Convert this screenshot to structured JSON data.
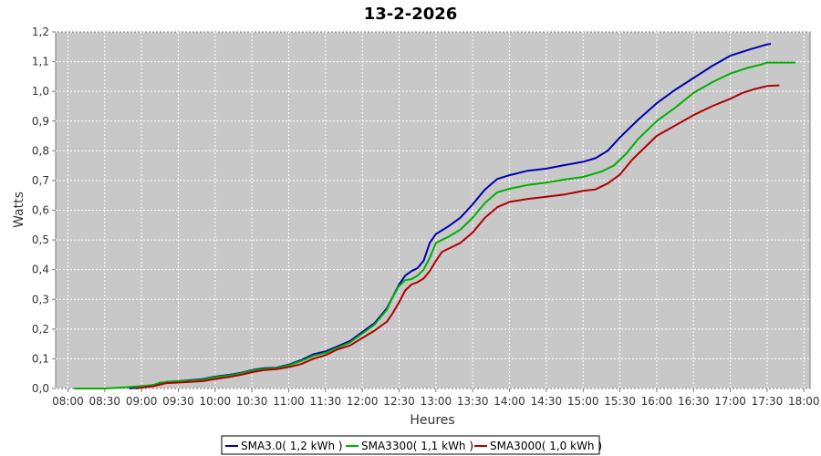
{
  "chart_data": {
    "type": "line",
    "title": "13-2-2026",
    "xlabel": "Heures",
    "ylabel": "Watts",
    "xlim": [
      "07:50",
      "18:05"
    ],
    "ylim": [
      0,
      1.2
    ],
    "x_ticks": [
      "08:00",
      "08:30",
      "09:00",
      "09:30",
      "10:00",
      "10:30",
      "11:00",
      "11:30",
      "12:00",
      "12:30",
      "13:00",
      "13:30",
      "14:00",
      "14:30",
      "15:00",
      "15:30",
      "16:00",
      "16:30",
      "17:00",
      "17:30",
      "18:00"
    ],
    "y_ticks": [
      "0,0",
      "0,1",
      "0,2",
      "0,3",
      "0,4",
      "0,5",
      "0,6",
      "0,7",
      "0,8",
      "0,9",
      "1,0",
      "1,1",
      "1,2"
    ],
    "grid": true,
    "legend_position": "bottom",
    "background": "#c8c8c8",
    "series": [
      {
        "name": "SMA3.0( 1,2 kWh )",
        "color": "#0000b0",
        "points": [
          [
            "08:50",
            0.0
          ],
          [
            "09:00",
            0.005
          ],
          [
            "09:10",
            0.012
          ],
          [
            "09:20",
            0.022
          ],
          [
            "09:30",
            0.025
          ],
          [
            "09:40",
            0.028
          ],
          [
            "09:50",
            0.032
          ],
          [
            "10:00",
            0.04
          ],
          [
            "10:10",
            0.045
          ],
          [
            "10:20",
            0.052
          ],
          [
            "10:30",
            0.062
          ],
          [
            "10:40",
            0.068
          ],
          [
            "10:50",
            0.07
          ],
          [
            "11:00",
            0.08
          ],
          [
            "11:10",
            0.095
          ],
          [
            "11:20",
            0.115
          ],
          [
            "11:30",
            0.125
          ],
          [
            "11:40",
            0.142
          ],
          [
            "11:50",
            0.16
          ],
          [
            "12:00",
            0.19
          ],
          [
            "12:10",
            0.22
          ],
          [
            "12:15",
            0.245
          ],
          [
            "12:20",
            0.27
          ],
          [
            "12:25",
            0.31
          ],
          [
            "12:30",
            0.35
          ],
          [
            "12:35",
            0.38
          ],
          [
            "12:40",
            0.395
          ],
          [
            "12:45",
            0.405
          ],
          [
            "12:50",
            0.43
          ],
          [
            "12:55",
            0.49
          ],
          [
            "13:00",
            0.52
          ],
          [
            "13:10",
            0.545
          ],
          [
            "13:20",
            0.575
          ],
          [
            "13:30",
            0.62
          ],
          [
            "13:40",
            0.67
          ],
          [
            "13:50",
            0.705
          ],
          [
            "14:00",
            0.718
          ],
          [
            "14:15",
            0.733
          ],
          [
            "14:30",
            0.74
          ],
          [
            "14:45",
            0.752
          ],
          [
            "15:00",
            0.763
          ],
          [
            "15:10",
            0.775
          ],
          [
            "15:20",
            0.8
          ],
          [
            "15:30",
            0.845
          ],
          [
            "15:45",
            0.905
          ],
          [
            "16:00",
            0.96
          ],
          [
            "16:15",
            1.005
          ],
          [
            "16:30",
            1.045
          ],
          [
            "16:45",
            1.085
          ],
          [
            "17:00",
            1.12
          ],
          [
            "17:15",
            1.14
          ],
          [
            "17:30",
            1.158
          ],
          [
            "17:33",
            1.16
          ]
        ]
      },
      {
        "name": "SMA3300( 1,1 kWh )",
        "color": "#00b000",
        "points": [
          [
            "08:05",
            0.0
          ],
          [
            "08:30",
            0.0
          ],
          [
            "08:50",
            0.005
          ],
          [
            "09:00",
            0.008
          ],
          [
            "09:10",
            0.012
          ],
          [
            "09:15",
            0.02
          ],
          [
            "09:30",
            0.025
          ],
          [
            "09:40",
            0.026
          ],
          [
            "09:50",
            0.03
          ],
          [
            "10:00",
            0.038
          ],
          [
            "10:10",
            0.043
          ],
          [
            "10:20",
            0.05
          ],
          [
            "10:30",
            0.06
          ],
          [
            "10:40",
            0.066
          ],
          [
            "10:50",
            0.068
          ],
          [
            "11:00",
            0.078
          ],
          [
            "11:10",
            0.092
          ],
          [
            "11:20",
            0.11
          ],
          [
            "11:30",
            0.12
          ],
          [
            "11:40",
            0.138
          ],
          [
            "11:50",
            0.155
          ],
          [
            "12:00",
            0.185
          ],
          [
            "12:10",
            0.215
          ],
          [
            "12:15",
            0.24
          ],
          [
            "12:20",
            0.265
          ],
          [
            "12:25",
            0.31
          ],
          [
            "12:30",
            0.345
          ],
          [
            "12:35",
            0.365
          ],
          [
            "12:40",
            0.368
          ],
          [
            "12:45",
            0.38
          ],
          [
            "12:50",
            0.4
          ],
          [
            "12:55",
            0.44
          ],
          [
            "13:00",
            0.49
          ],
          [
            "13:10",
            0.51
          ],
          [
            "13:20",
            0.535
          ],
          [
            "13:30",
            0.575
          ],
          [
            "13:40",
            0.625
          ],
          [
            "13:50",
            0.66
          ],
          [
            "14:00",
            0.672
          ],
          [
            "14:15",
            0.685
          ],
          [
            "14:30",
            0.693
          ],
          [
            "14:45",
            0.703
          ],
          [
            "15:00",
            0.712
          ],
          [
            "15:15",
            0.73
          ],
          [
            "15:25",
            0.75
          ],
          [
            "15:35",
            0.79
          ],
          [
            "15:45",
            0.84
          ],
          [
            "16:00",
            0.9
          ],
          [
            "16:15",
            0.945
          ],
          [
            "16:30",
            0.995
          ],
          [
            "16:45",
            1.03
          ],
          [
            "17:00",
            1.06
          ],
          [
            "17:15",
            1.08
          ],
          [
            "17:25",
            1.09
          ],
          [
            "17:30",
            1.097
          ],
          [
            "17:53",
            1.097
          ]
        ]
      },
      {
        "name": "SMA3000( 1,0 kWh )",
        "color": "#b00000",
        "points": [
          [
            "08:55",
            0.0
          ],
          [
            "09:00",
            0.003
          ],
          [
            "09:10",
            0.008
          ],
          [
            "09:20",
            0.018
          ],
          [
            "09:30",
            0.02
          ],
          [
            "09:40",
            0.022
          ],
          [
            "09:50",
            0.025
          ],
          [
            "10:00",
            0.032
          ],
          [
            "10:10",
            0.038
          ],
          [
            "10:20",
            0.045
          ],
          [
            "10:30",
            0.055
          ],
          [
            "10:40",
            0.062
          ],
          [
            "10:50",
            0.065
          ],
          [
            "11:00",
            0.072
          ],
          [
            "11:10",
            0.082
          ],
          [
            "11:20",
            0.1
          ],
          [
            "11:30",
            0.112
          ],
          [
            "11:40",
            0.132
          ],
          [
            "11:50",
            0.145
          ],
          [
            "12:00",
            0.17
          ],
          [
            "12:10",
            0.195
          ],
          [
            "12:20",
            0.225
          ],
          [
            "12:25",
            0.255
          ],
          [
            "12:30",
            0.29
          ],
          [
            "12:35",
            0.33
          ],
          [
            "12:40",
            0.35
          ],
          [
            "12:45",
            0.358
          ],
          [
            "12:50",
            0.37
          ],
          [
            "12:55",
            0.395
          ],
          [
            "13:00",
            0.43
          ],
          [
            "13:05",
            0.46
          ],
          [
            "13:10",
            0.47
          ],
          [
            "13:20",
            0.49
          ],
          [
            "13:30",
            0.525
          ],
          [
            "13:40",
            0.575
          ],
          [
            "13:50",
            0.61
          ],
          [
            "14:00",
            0.628
          ],
          [
            "14:15",
            0.638
          ],
          [
            "14:30",
            0.645
          ],
          [
            "14:45",
            0.653
          ],
          [
            "15:00",
            0.665
          ],
          [
            "15:10",
            0.67
          ],
          [
            "15:20",
            0.69
          ],
          [
            "15:30",
            0.72
          ],
          [
            "15:40",
            0.77
          ],
          [
            "16:00",
            0.85
          ],
          [
            "16:15",
            0.885
          ],
          [
            "16:30",
            0.92
          ],
          [
            "16:45",
            0.95
          ],
          [
            "17:00",
            0.975
          ],
          [
            "17:10",
            0.995
          ],
          [
            "17:20",
            1.008
          ],
          [
            "17:30",
            1.018
          ],
          [
            "17:40",
            1.02
          ]
        ]
      }
    ]
  }
}
